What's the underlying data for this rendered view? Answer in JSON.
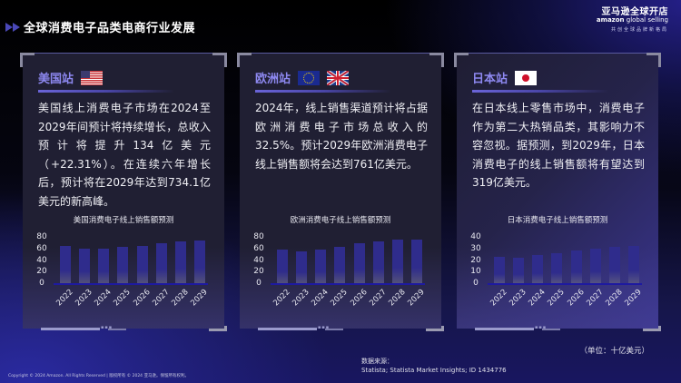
{
  "header": {
    "title": "全球消费电子品类电商行业发展",
    "icon": "double-arrow-icon"
  },
  "logo": {
    "line1": "亚马逊全球开店",
    "line2_brand": "amazon",
    "line2_rest": " global selling",
    "line3": "共创全球品牌新格局"
  },
  "cards": [
    {
      "site": "美国站",
      "flags": [
        "us-flag-icon"
      ],
      "description": "美国线上消费电子市场在2024至2029年间预计将持续增长，总收入预计将提升134亿美元（+22.31%）。在连续六年增长后，预计将在2029年达到734.1亿美元的新高峰。",
      "chart_title": "美国消费电子线上销售额预测",
      "yticks": [
        "80",
        "60",
        "40",
        "20",
        "0"
      ]
    },
    {
      "site": "欧洲站",
      "flags": [
        "eu-flag-icon",
        "uk-flag-icon"
      ],
      "description": "2024年，线上销售渠道预计将占据欧洲消费电子市场总收入的32.5%。预计2029年欧洲消费电子线上销售额将会达到761亿美元。",
      "chart_title": "欧洲消费电子线上销售额预测",
      "yticks": [
        "80",
        "60",
        "40",
        "20",
        "0"
      ]
    },
    {
      "site": "日本站",
      "flags": [
        "japan-flag-icon"
      ],
      "description": "在日本线上零售市场中，消费电子作为第二大热销品类，其影响力不容忽视。据预测，到2029年，日本消费电子的线上销售额将有望达到319亿美元。",
      "chart_title": "日本消费电子线上销售额预测",
      "yticks": [
        "40",
        "30",
        "20",
        "10",
        "0"
      ]
    }
  ],
  "footer": {
    "unit": "（单位：十亿美元）",
    "source_label": "数据来源：",
    "source_text": "Statista; Statista Market Insights; ID 1434776",
    "copyright": "Copyright © 2024 Amazon. All Rights Reserved | 版权所有 © 2024 亚马逊。保留所有权利。"
  },
  "colors": {
    "accent": "#8d88f0",
    "bar": "#2f2c8c",
    "baseline": "#1e1aa0",
    "card_bg": "#201f33"
  },
  "chart_data": [
    {
      "type": "bar",
      "title": "美国消费电子线上销售额预测",
      "categories": [
        "2022",
        "2023",
        "2024",
        "2025",
        "2026",
        "2027",
        "2028",
        "2029"
      ],
      "values": [
        65,
        59,
        60,
        62,
        65,
        69,
        72,
        73.41
      ],
      "xlabel": "",
      "ylabel": "十亿美元",
      "ylim": [
        0,
        80
      ],
      "yticks": [
        0,
        20,
        40,
        60,
        80
      ],
      "grid": false,
      "legend": "none"
    },
    {
      "type": "bar",
      "title": "欧洲消费电子线上销售额预测",
      "categories": [
        "2022",
        "2023",
        "2024",
        "2025",
        "2026",
        "2027",
        "2028",
        "2029"
      ],
      "values": [
        58,
        55,
        58,
        63,
        69,
        72,
        75,
        76.1
      ],
      "xlabel": "",
      "ylabel": "十亿美元",
      "ylim": [
        0,
        80
      ],
      "yticks": [
        0,
        20,
        40,
        60,
        80
      ],
      "grid": false,
      "legend": "none"
    },
    {
      "type": "bar",
      "title": "日本消费电子线上销售额预测",
      "categories": [
        "2022",
        "2023",
        "2024",
        "2025",
        "2026",
        "2027",
        "2028",
        "2029"
      ],
      "values": [
        23,
        22,
        24,
        26,
        28,
        30,
        31,
        31.9
      ],
      "xlabel": "",
      "ylabel": "十亿美元",
      "ylim": [
        0,
        40
      ],
      "yticks": [
        0,
        10,
        20,
        30,
        40
      ],
      "grid": false,
      "legend": "none"
    }
  ]
}
